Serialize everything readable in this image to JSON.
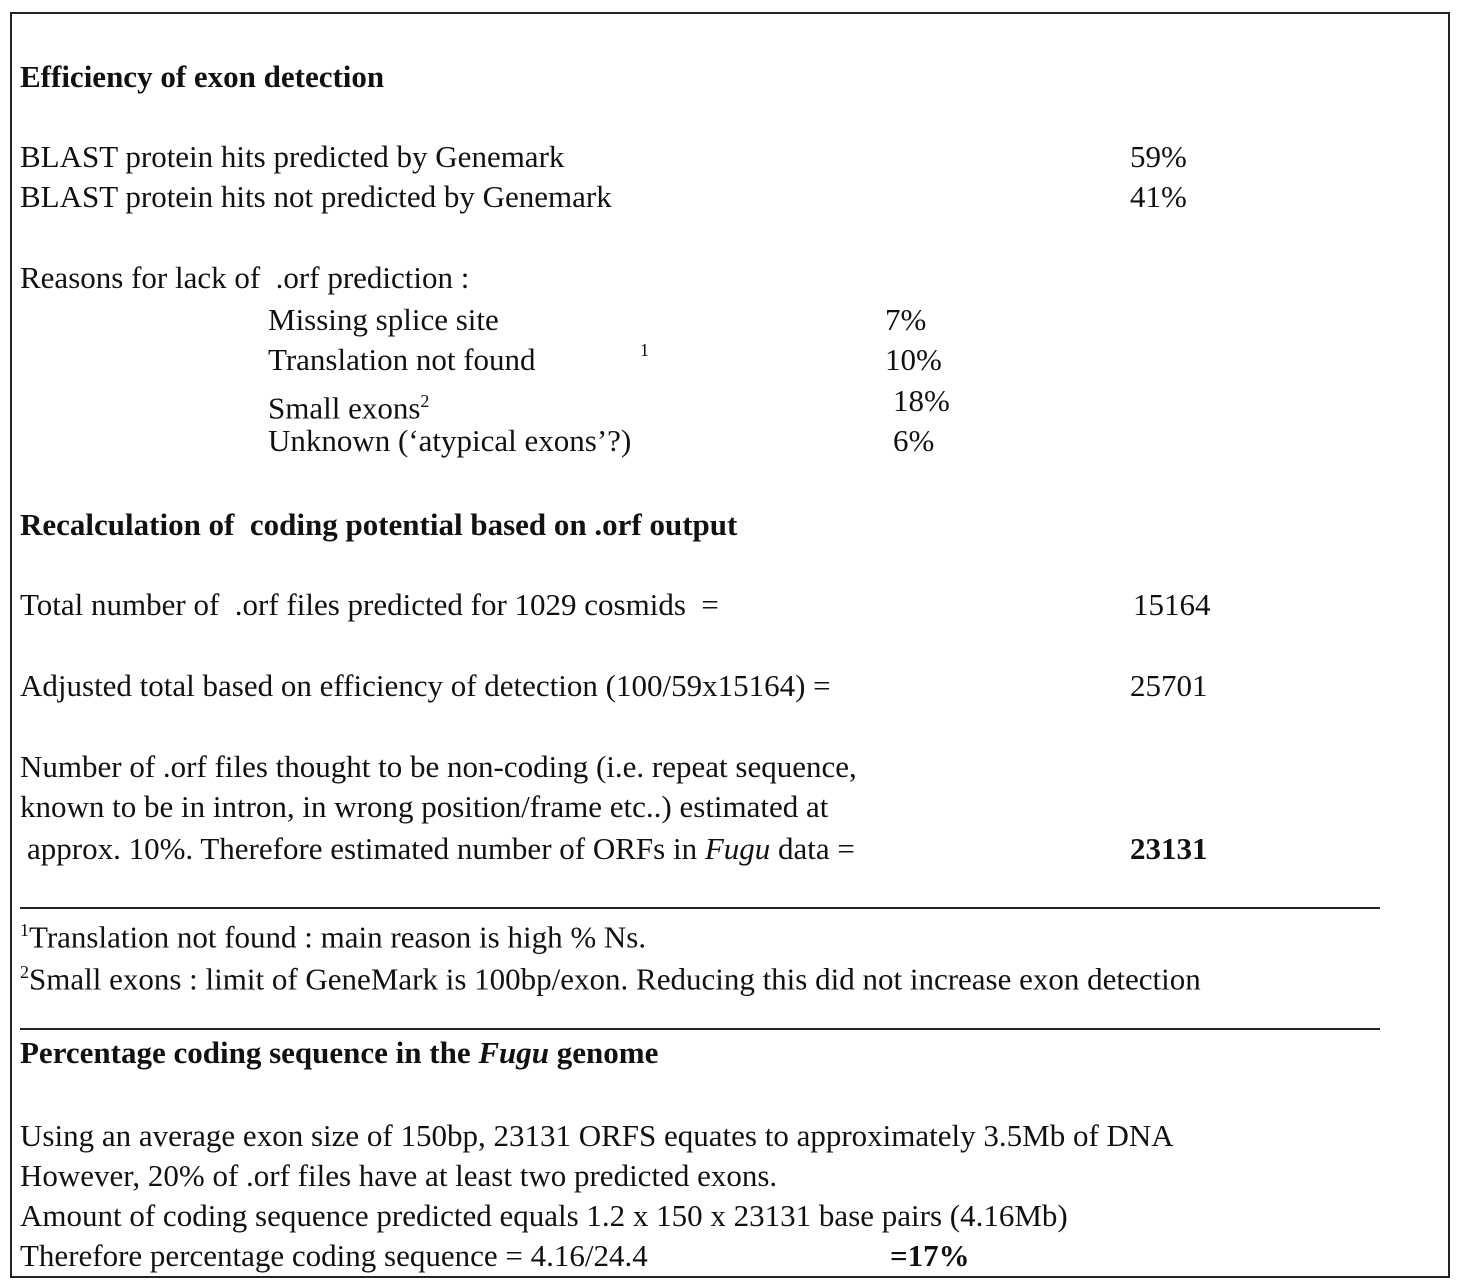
{
  "section1": {
    "title": "Efficiency of exon detection",
    "rows": [
      {
        "label": "BLAST protein hits predicted by Genemark",
        "value": "59%"
      },
      {
        "label": "BLAST protein hits not predicted by Genemark",
        "value": "41%"
      }
    ],
    "reasons_title": "Reasons for lack of  .orf prediction :",
    "reasons": [
      {
        "label": "Missing splice site",
        "value": "7%"
      },
      {
        "label": "Translation not found",
        "note": "1",
        "value": "10%"
      },
      {
        "label": "Small exons",
        "note": "2",
        "value": "18%"
      },
      {
        "label": "Unknown (‘atypical exons’?)",
        "value": "6%"
      }
    ]
  },
  "section2": {
    "title": "Recalculation of  coding potential based on .orf output",
    "rows": [
      {
        "label": "Total number of  .orf files predicted for 1029 cosmids  =",
        "value": "15164"
      },
      {
        "label": "Adjusted total based on efficiency of detection (100/59x15164) =",
        "value": "25701"
      }
    ],
    "paragraph": {
      "lines": [
        "Number of .orf files thought to be non-coding (i.e. repeat sequence,",
        "known to be in intron, in wrong position/frame etc..) estimated at"
      ],
      "last_before": "approx. 10%. Therefore estimated number of ORFs in ",
      "last_italic": "Fugu",
      "last_after": " data =",
      "value": "23131"
    }
  },
  "footnotes": [
    {
      "mark": "1",
      "text": "Translation not found : main reason is high % Ns."
    },
    {
      "mark": "2",
      "text": "Small exons : limit of GeneMark is 100bp/exon. Reducing this did not increase exon detection"
    }
  ],
  "section3": {
    "title_before": "Percentage coding sequence in the ",
    "title_italic": "Fugu",
    "title_after": " genome",
    "lines": [
      "Using an average exon size of 150bp, 23131 ORFS equates to approximately 3.5Mb of DNA",
      "However, 20% of .orf files have at least two predicted exons.",
      "Amount of coding sequence predicted equals 1.2 x 150 x 23131 base pairs (4.16Mb)"
    ],
    "last_line": "Therefore percentage coding sequence = 4.16/24.4",
    "last_value": "=17%"
  }
}
